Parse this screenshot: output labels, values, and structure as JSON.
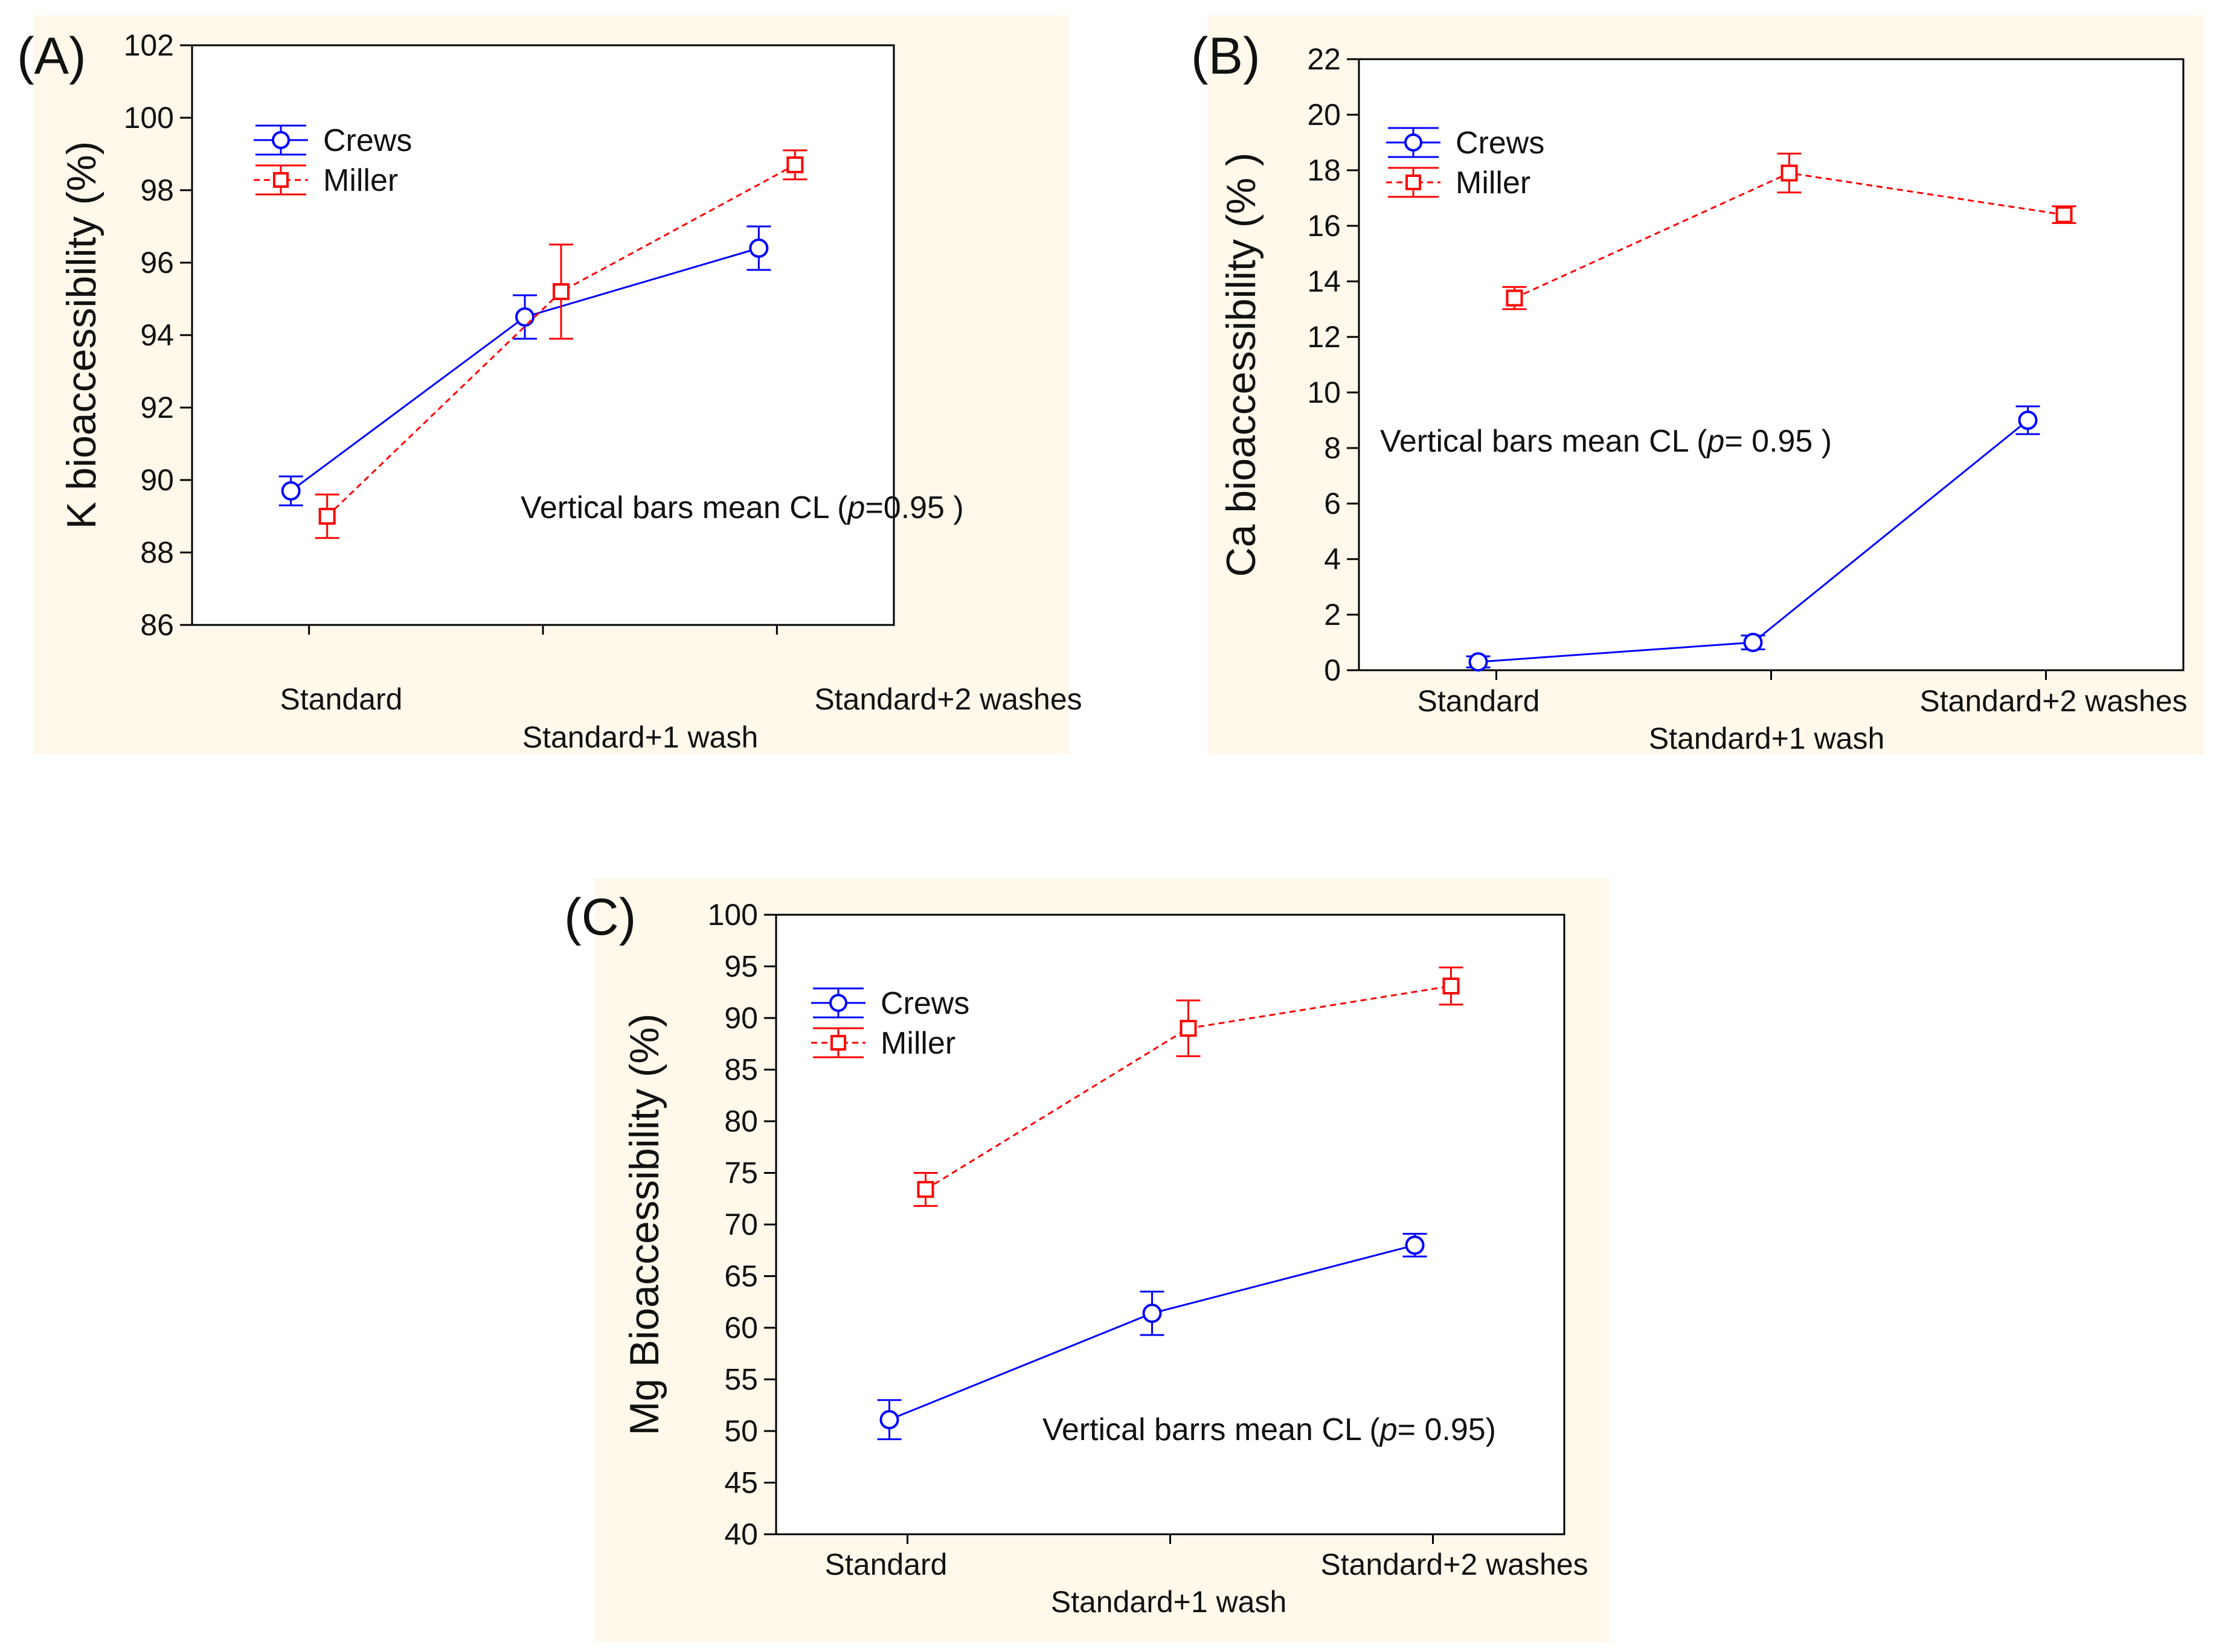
{
  "figure": {
    "colors": {
      "panel_background": "#FFF8EB",
      "crews": "#0000FF",
      "miller": "#FF0000",
      "axis": "#000000"
    }
  },
  "chart_data": [
    {
      "panel_label": "(A)",
      "type": "line",
      "ylabel": "K bioaccessibility (%)",
      "categories": [
        "Standard",
        "Standard+1 wash",
        "Standard+2 washes"
      ],
      "ylim": [
        86,
        102
      ],
      "yticks": [
        86,
        88,
        90,
        92,
        94,
        96,
        98,
        100,
        102
      ],
      "annotation": {
        "prefix": "Vertical bars mean CL (",
        "italic": "p",
        "suffix": "=0.95 )"
      },
      "legend": {
        "placement": "top-left"
      },
      "series": [
        {
          "name": "Crews",
          "marker": "circle",
          "line": "solid",
          "values": [
            89.7,
            94.5,
            96.4
          ],
          "ci": [
            0.4,
            0.6,
            0.6
          ]
        },
        {
          "name": "Miller",
          "marker": "square",
          "line": "dashed",
          "values": [
            89.0,
            95.2,
            98.7
          ],
          "ci": [
            0.6,
            1.3,
            0.4
          ]
        }
      ]
    },
    {
      "panel_label": "(B)",
      "type": "line",
      "ylabel": "Ca bioaccessibility (% )",
      "categories": [
        "Standard",
        "Standard+1 wash",
        "Standard+2 washes"
      ],
      "ylim": [
        0,
        22
      ],
      "yticks": [
        0,
        2,
        4,
        6,
        8,
        10,
        12,
        14,
        16,
        18,
        20,
        22
      ],
      "annotation": {
        "prefix": "Vertical bars mean CL (",
        "italic": "p",
        "suffix": "= 0.95 )"
      },
      "legend": {
        "placement": "top-left"
      },
      "series": [
        {
          "name": "Crews",
          "marker": "circle",
          "line": "solid",
          "values": [
            0.3,
            1.0,
            9.0
          ],
          "ci": [
            0.2,
            0.25,
            0.5
          ]
        },
        {
          "name": "Miller",
          "marker": "square",
          "line": "dashed",
          "values": [
            13.4,
            17.9,
            16.4
          ],
          "ci": [
            0.4,
            0.7,
            0.3
          ]
        }
      ]
    },
    {
      "panel_label": "(C)",
      "type": "line",
      "ylabel": "Mg Bioaccessibility (%)",
      "categories": [
        "Standard",
        "Standard+1 wash",
        "Standard+2 washes"
      ],
      "ylim": [
        40,
        100
      ],
      "yticks": [
        40,
        45,
        50,
        55,
        60,
        65,
        70,
        75,
        80,
        85,
        90,
        95,
        100
      ],
      "annotation": {
        "prefix": "Vertical barrs mean CL (",
        "italic": "p",
        "suffix": "=  0.95)"
      },
      "legend": {
        "placement": "top-left"
      },
      "series": [
        {
          "name": "Crews",
          "marker": "circle",
          "line": "solid",
          "values": [
            51.1,
            61.4,
            68.0
          ],
          "ci": [
            1.9,
            2.1,
            1.1
          ]
        },
        {
          "name": "Miller",
          "marker": "square",
          "line": "dashed",
          "values": [
            73.4,
            89.0,
            93.1
          ],
          "ci": [
            1.6,
            2.7,
            1.8
          ]
        }
      ]
    }
  ]
}
